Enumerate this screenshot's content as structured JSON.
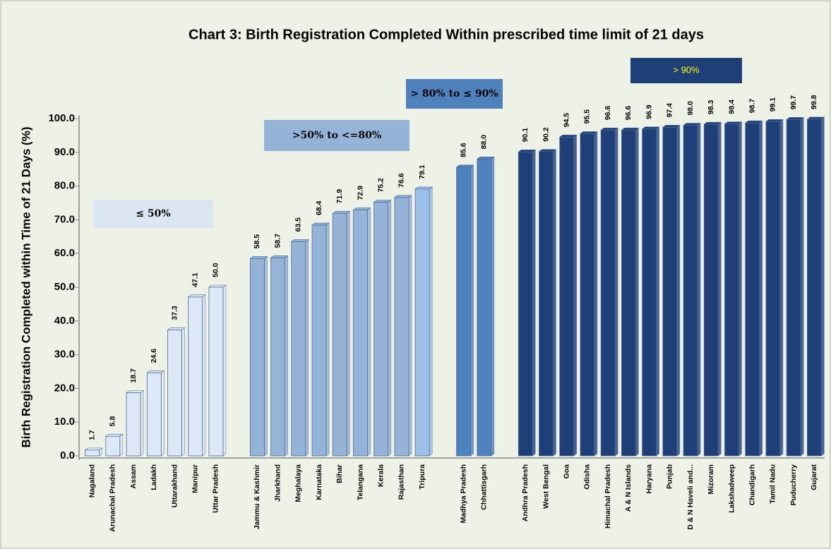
{
  "chart_data": {
    "type": "bar",
    "title": "Chart 3: Birth Registration Completed Within prescribed time limit of 21 days",
    "y_label": "Birth Registration  Completed within Time of 21 Days (%)",
    "categories": [
      "Nagaland",
      "Arunachal Pradesh",
      "Assam",
      "Ladakh",
      "Uttarakhand",
      "Manipur",
      "Uttar Pradesh",
      null,
      "Jammu & Kashmir",
      "Jharkhand",
      "Meghalaya",
      "Karnataka",
      "Bihar",
      "Telangana",
      "Kerala",
      "Rajasthan",
      "Tripura",
      null,
      "Madhya Pradesh",
      "Chhattisgarh",
      null,
      "Andhra Pradesh",
      "West Bengal",
      "Goa",
      "Odisha",
      "Himachal Pradesh",
      "A & N Islands",
      "Haryana",
      "Punjab",
      "D & N Haveli and...",
      "Mizoram",
      "Lakshadweep",
      "Chandigarh",
      "Tamil Nadu",
      "Puducherry",
      "Gujarat"
    ],
    "values": [
      1.7,
      5.8,
      18.7,
      24.6,
      37.3,
      47.1,
      50.0,
      null,
      58.5,
      58.7,
      63.5,
      68.4,
      71.9,
      72.9,
      75.2,
      76.6,
      79.1,
      null,
      85.6,
      88.0,
      null,
      90.1,
      90.2,
      94.5,
      95.5,
      96.6,
      96.6,
      96.9,
      97.4,
      98.0,
      98.3,
      98.4,
      98.7,
      99.1,
      99.7,
      99.8
    ],
    "value_labels": [
      "1.7",
      "5.8",
      "18.7",
      "24.6",
      "37.3",
      "47.1",
      "50.0",
      null,
      "58.5",
      "58.7",
      "63.5",
      "68.4",
      "71.9",
      "72.9",
      "75.2",
      "76.6",
      "79.1",
      null,
      "85.6",
      "88.0",
      null,
      "90.1",
      "90.2",
      "94.5",
      "95.5",
      "96.6",
      "96.6",
      "96.9",
      "97.4",
      "98.0",
      "98.3",
      "98.4",
      "98.7",
      "99.1",
      "99.7",
      "99.8"
    ],
    "colors": [
      "#dde8f7",
      "#dde8f7",
      "#dde8f7",
      "#dde8f7",
      "#dde8f7",
      "#dde8f7",
      "#dde8f7",
      null,
      "#95b3d7",
      "#95b3d7",
      "#95b3d7",
      "#95b3d7",
      "#95b3d7",
      "#95b3d7",
      "#95b3d7",
      "#95b3d7",
      "#9dc0ea",
      null,
      "#4f81bd",
      "#4f81bd",
      null,
      "#1f3f78",
      "#1f3f78",
      "#1f3f78",
      "#1f3f78",
      "#1f3f78",
      "#1f3f78",
      "#1f3f78",
      "#1f3f78",
      "#1f3f78",
      "#1f3f78",
      "#1f3f78",
      "#1f3f78",
      "#1f3f78",
      "#1f3f78",
      "#1f3f78"
    ],
    "ylim": [
      0,
      100
    ],
    "yticks": [
      {
        "value": 0,
        "label": "0.0"
      },
      {
        "value": 10,
        "label": "10.0"
      },
      {
        "value": 20,
        "label": "20.0"
      },
      {
        "value": 30,
        "label": "30.0"
      },
      {
        "value": 40,
        "label": "40.0"
      },
      {
        "value": 50,
        "label": "50.0"
      },
      {
        "value": 60,
        "label": "60.0"
      },
      {
        "value": 70,
        "label": "70.0"
      },
      {
        "value": 80,
        "label": "80.0"
      },
      {
        "value": 90,
        "label": "90.0"
      },
      {
        "value": 100,
        "label": "100.0"
      }
    ],
    "grid": false,
    "annotations": [
      "≤ 50%",
      ">50% to <=80%",
      "> 80% to ≤ 90%",
      "> 90%"
    ]
  }
}
